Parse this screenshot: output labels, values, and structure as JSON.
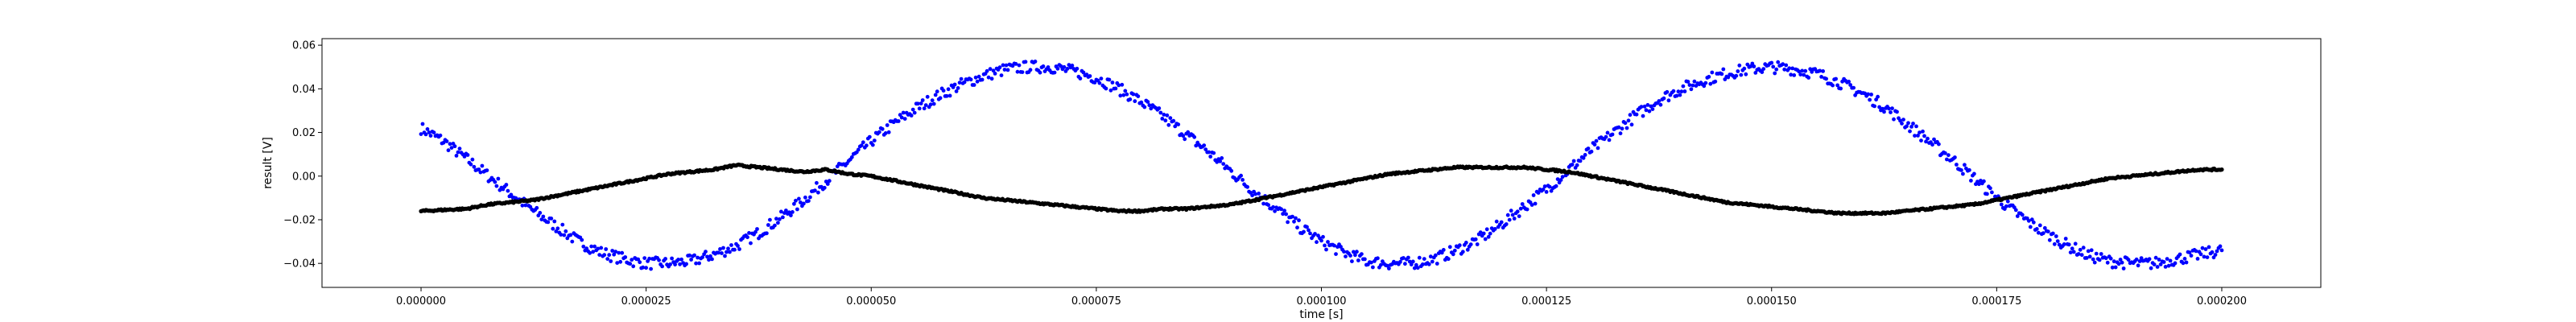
{
  "chart_data": {
    "type": "scatter",
    "title": "",
    "xlabel": "time [s]",
    "ylabel": "result [V]",
    "xlim": [
      -1.1e-05,
      0.000211
    ],
    "ylim": [
      -0.051,
      0.063
    ],
    "x_ticks": [
      0,
      2.5e-05,
      5e-05,
      7.5e-05,
      0.0001,
      0.000125,
      0.00015,
      0.000175,
      0.0002
    ],
    "x_tick_labels": [
      "0.000000",
      "0.000025",
      "0.000050",
      "0.000075",
      "0.000100",
      "0.000125",
      "0.000150",
      "0.000175",
      "0.000200"
    ],
    "y_ticks": [
      -0.04,
      -0.02,
      0.0,
      0.02,
      0.04,
      0.06
    ],
    "y_tick_labels": [
      "−0.04",
      "−0.02",
      "0.00",
      "0.02",
      "0.04",
      "0.06"
    ],
    "grid": false,
    "legend": null,
    "series": [
      {
        "color": "#0000ff",
        "marker": "point",
        "x": [
          0.0,
          2.5e-06,
          5e-06,
          7.5e-06,
          1e-05,
          1.25e-05,
          1.5e-05,
          1.75e-05,
          2e-05,
          2.25e-05,
          2.5e-05,
          2.75e-05,
          3e-05,
          3.25e-05,
          3.5e-05,
          3.75e-05,
          4e-05,
          4.25e-05,
          4.5e-05,
          4.75e-05,
          5e-05,
          5.25e-05,
          5.5e-05,
          5.75e-05,
          6e-05,
          6.25e-05,
          6.5e-05,
          6.75e-05,
          7e-05,
          7.25e-05,
          7.5e-05,
          7.75e-05,
          8e-05,
          8.25e-05,
          8.5e-05,
          8.75e-05,
          9e-05,
          9.25e-05,
          9.5e-05,
          9.75e-05,
          0.0001,
          0.0001025,
          0.000105,
          0.0001075,
          0.00011,
          0.0001125,
          0.000115,
          0.0001175,
          0.00012,
          0.0001225,
          0.000125,
          0.0001275,
          0.00013,
          0.0001325,
          0.000135,
          0.0001375,
          0.00014,
          0.0001425,
          0.000145,
          0.0001475,
          0.00015,
          0.0001525,
          0.000155,
          0.0001575,
          0.00016,
          0.0001625,
          0.000165,
          0.0001675,
          0.00017,
          0.0001725,
          0.000175,
          0.0001775,
          0.00018,
          0.0001825,
          0.000185,
          0.0001875,
          0.00019,
          0.0001925,
          0.000195,
          0.0001975,
          0.0002
        ],
        "y": [
          0.022,
          0.016,
          0.008,
          0.0,
          -0.008,
          -0.016,
          -0.023,
          -0.03,
          -0.035,
          -0.038,
          -0.04,
          -0.04,
          -0.039,
          -0.036,
          -0.032,
          -0.026,
          -0.019,
          -0.011,
          -0.002,
          0.007,
          0.016,
          0.024,
          0.031,
          0.037,
          0.042,
          0.046,
          0.049,
          0.05,
          0.05,
          0.048,
          0.045,
          0.04,
          0.034,
          0.027,
          0.019,
          0.011,
          0.002,
          -0.007,
          -0.015,
          -0.023,
          -0.03,
          -0.035,
          -0.039,
          -0.04,
          -0.04,
          -0.038,
          -0.034,
          -0.029,
          -0.022,
          -0.014,
          -0.006,
          0.003,
          0.012,
          0.02,
          0.028,
          0.035,
          0.04,
          0.044,
          0.047,
          0.049,
          0.05,
          0.049,
          0.047,
          0.043,
          0.038,
          0.032,
          0.024,
          0.016,
          0.008,
          -0.001,
          -0.01,
          -0.018,
          -0.025,
          -0.031,
          -0.036,
          -0.039,
          -0.04,
          -0.04,
          -0.038,
          -0.036,
          -0.034
        ]
      },
      {
        "color": "#000000",
        "marker": "point",
        "x": [
          0.0,
          2.5e-06,
          5e-06,
          7.5e-06,
          1e-05,
          1.25e-05,
          1.5e-05,
          1.75e-05,
          2e-05,
          2.25e-05,
          2.5e-05,
          2.75e-05,
          3e-05,
          3.25e-05,
          3.5e-05,
          3.75e-05,
          4e-05,
          4.25e-05,
          4.5e-05,
          4.75e-05,
          5e-05,
          5.25e-05,
          5.5e-05,
          5.75e-05,
          6e-05,
          6.25e-05,
          6.5e-05,
          6.75e-05,
          7e-05,
          7.25e-05,
          7.5e-05,
          7.75e-05,
          8e-05,
          8.25e-05,
          8.5e-05,
          8.75e-05,
          9e-05,
          9.25e-05,
          9.5e-05,
          9.75e-05,
          0.0001,
          0.0001025,
          0.000105,
          0.0001075,
          0.00011,
          0.0001125,
          0.000115,
          0.0001175,
          0.00012,
          0.0001225,
          0.000125,
          0.0001275,
          0.00013,
          0.0001325,
          0.000135,
          0.0001375,
          0.00014,
          0.0001425,
          0.000145,
          0.0001475,
          0.00015,
          0.0001525,
          0.000155,
          0.0001575,
          0.00016,
          0.0001625,
          0.000165,
          0.0001675,
          0.00017,
          0.0001725,
          0.000175,
          0.0001775,
          0.00018,
          0.0001825,
          0.000185,
          0.0001875,
          0.00019,
          0.0001925,
          0.000195,
          0.0001975,
          0.0002
        ],
        "y": [
          -0.016,
          -0.0155,
          -0.015,
          -0.013,
          -0.012,
          -0.011,
          -0.009,
          -0.007,
          -0.005,
          -0.003,
          -0.001,
          0.001,
          0.002,
          0.003,
          0.005,
          0.004,
          0.003,
          0.002,
          0.003,
          0.001,
          0.0,
          -0.002,
          -0.004,
          -0.006,
          -0.008,
          -0.01,
          -0.011,
          -0.012,
          -0.013,
          -0.014,
          -0.015,
          -0.016,
          -0.016,
          -0.015,
          -0.015,
          -0.014,
          -0.013,
          -0.011,
          -0.009,
          -0.007,
          -0.005,
          -0.003,
          -0.001,
          0.001,
          0.002,
          0.003,
          0.004,
          0.004,
          0.004,
          0.004,
          0.003,
          0.002,
          0.0,
          -0.002,
          -0.004,
          -0.006,
          -0.008,
          -0.01,
          -0.012,
          -0.013,
          -0.014,
          -0.015,
          -0.016,
          -0.017,
          -0.017,
          -0.017,
          -0.016,
          -0.015,
          -0.014,
          -0.013,
          -0.011,
          -0.009,
          -0.007,
          -0.005,
          -0.003,
          -0.001,
          0.0,
          0.001,
          0.002,
          0.003,
          0.003
        ]
      }
    ]
  }
}
